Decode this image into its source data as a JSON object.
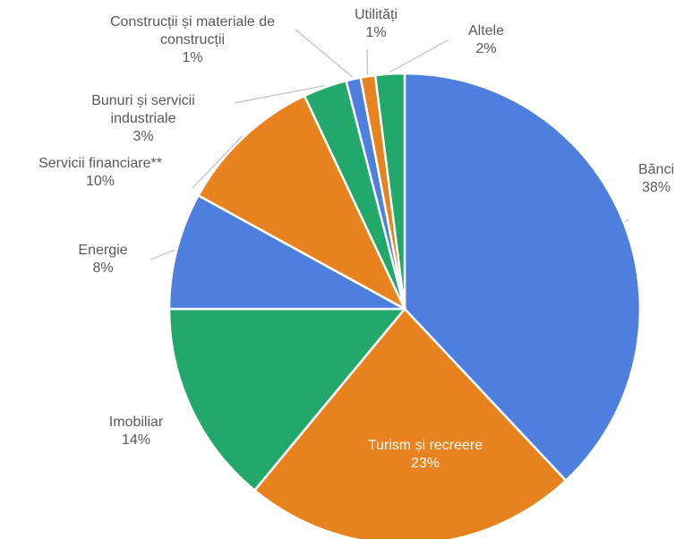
{
  "chart_data": {
    "type": "pie",
    "categories": [
      "Bănci",
      "Turism și recreere",
      "Imobiliar",
      "Energie",
      "Servicii financiare**",
      "Bunuri și servicii industriale",
      "Construcții și materiale de construcții",
      "Utilități",
      "Altele"
    ],
    "values": [
      38,
      23,
      14,
      8,
      10,
      3,
      1,
      1,
      2
    ],
    "value_labels": [
      "38%",
      "23%",
      "14%",
      "8%",
      "10%",
      "3%",
      "1%",
      "1%",
      "2%"
    ],
    "colors": [
      "#4e7fdf",
      "#e8821e",
      "#22a86a",
      "#4e7fdf",
      "#e8821e",
      "#22a86a",
      "#4e7fdf",
      "#e8821e",
      "#22a86a"
    ]
  }
}
